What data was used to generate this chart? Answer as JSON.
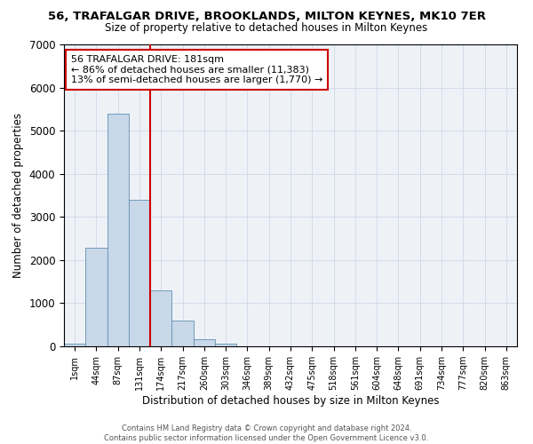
{
  "title": "56, TRAFALGAR DRIVE, BROOKLANDS, MILTON KEYNES, MK10 7ER",
  "subtitle": "Size of property relative to detached houses in Milton Keynes",
  "xlabel": "Distribution of detached houses by size in Milton Keynes",
  "ylabel": "Number of detached properties",
  "footer_line1": "Contains HM Land Registry data © Crown copyright and database right 2024.",
  "footer_line2": "Contains public sector information licensed under the Open Government Licence v3.0.",
  "bar_color": "#c8d8e8",
  "bar_edge_color": "#6090b0",
  "vline_color": "#cc0000",
  "annotation_box_color": "#cc0000",
  "grid_color": "#d0d8e8",
  "background_color": "#eef2f7",
  "tick_labels": [
    "1sqm",
    "44sqm",
    "87sqm",
    "131sqm",
    "174sqm",
    "217sqm",
    "260sqm",
    "303sqm",
    "346sqm",
    "389sqm",
    "432sqm",
    "475sqm",
    "518sqm",
    "561sqm",
    "604sqm",
    "648sqm",
    "691sqm",
    "734sqm",
    "777sqm",
    "820sqm",
    "863sqm"
  ],
  "bar_heights": [
    70,
    2280,
    5400,
    3400,
    1300,
    600,
    160,
    60,
    10,
    0,
    0,
    0,
    0,
    0,
    0,
    0,
    0,
    0,
    0,
    0,
    0
  ],
  "vline_position": 3.5,
  "annotation_text_line1": "56 TRAFALGAR DRIVE: 181sqm",
  "annotation_text_line2": "← 86% of detached houses are smaller (11,383)",
  "annotation_text_line3": "13% of semi-detached houses are larger (1,770) →",
  "ylim": [
    0,
    7000
  ],
  "yticks": [
    0,
    1000,
    2000,
    3000,
    4000,
    5000,
    6000,
    7000
  ],
  "fig_width": 6.0,
  "fig_height": 5.0,
  "dpi": 100
}
